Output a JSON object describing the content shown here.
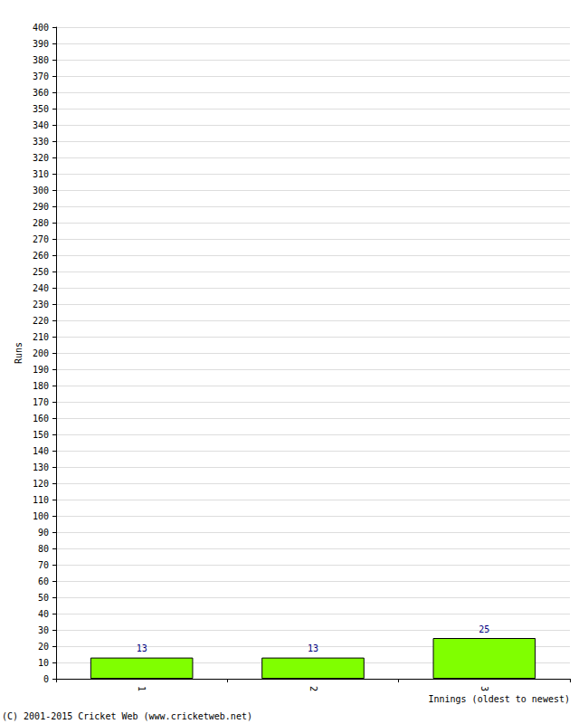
{
  "chart_data": {
    "type": "bar",
    "categories": [
      "1",
      "2",
      "3"
    ],
    "values": [
      13,
      13,
      25
    ],
    "color": "#80ff00",
    "x_label": "Innings (oldest to newest)",
    "y_label": "Runs",
    "annotations": [
      "(C) 2001-2015 Cricket Web (www.cricketweb.net)"
    ],
    "ylim": [
      0,
      400
    ],
    "yticks": [
      0,
      10,
      20,
      30,
      40,
      50,
      60,
      70,
      80,
      90,
      100,
      110,
      120,
      130,
      140,
      150,
      160,
      170,
      180,
      190,
      200,
      210,
      220,
      230,
      240,
      250,
      260,
      270,
      280,
      290,
      300,
      310,
      320,
      330,
      340,
      350,
      360,
      370,
      380,
      390,
      400
    ],
    "grid": true,
    "data_labels": true
  }
}
